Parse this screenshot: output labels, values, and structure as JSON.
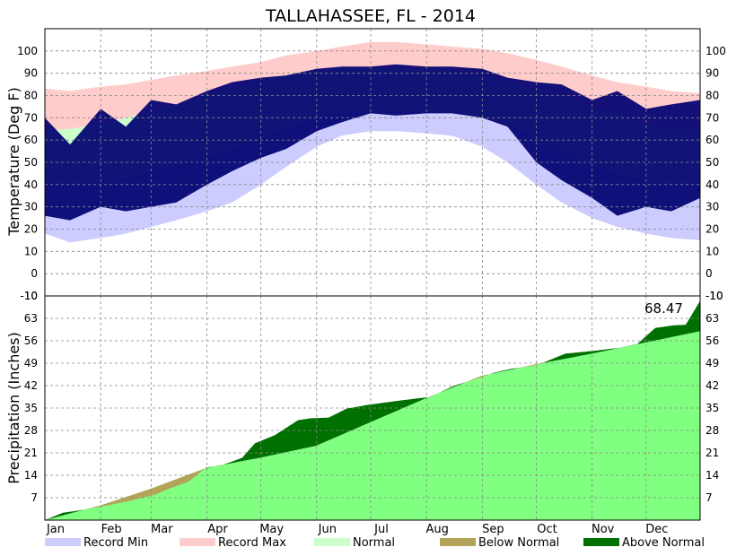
{
  "chart_data": {
    "type": "area",
    "title": "TALLAHASSEE, FL - 2014",
    "months": [
      "Jan",
      "Feb",
      "Mar",
      "Apr",
      "May",
      "Jun",
      "Jul",
      "Aug",
      "Sep",
      "Oct",
      "Nov",
      "Dec"
    ],
    "temperature": {
      "ylabel": "Temperature (Deg F)",
      "ylim": [
        -10,
        110
      ],
      "ticks": [
        -10,
        0,
        10,
        20,
        30,
        40,
        50,
        60,
        70,
        80,
        90,
        100
      ],
      "grid": true,
      "series_order": [
        "Record Min",
        "Record Max",
        "Normal",
        "Observed"
      ],
      "x_day": [
        1,
        15,
        32,
        46,
        60,
        74,
        91,
        105,
        121,
        135,
        152,
        166,
        182,
        196,
        213,
        227,
        244,
        258,
        274,
        288,
        305,
        319,
        335,
        349,
        365
      ],
      "record_max": [
        83,
        82,
        84,
        85,
        87,
        89,
        91,
        93,
        95,
        98,
        100,
        102,
        104,
        104,
        103,
        102,
        101,
        99,
        96,
        93,
        89,
        86,
        84,
        82,
        81
      ],
      "normal_max": [
        64,
        65,
        67,
        70,
        73,
        76,
        80,
        83,
        87,
        89,
        91,
        92,
        92,
        92,
        92,
        91,
        89,
        87,
        83,
        80,
        75,
        71,
        67,
        65,
        64
      ],
      "normal_min": [
        40,
        40,
        41,
        43,
        46,
        49,
        52,
        56,
        61,
        65,
        70,
        72,
        73,
        73,
        73,
        72,
        70,
        67,
        61,
        56,
        49,
        45,
        42,
        40,
        40
      ],
      "record_min": [
        18,
        14,
        16,
        18,
        21,
        24,
        28,
        32,
        40,
        48,
        57,
        62,
        64,
        64,
        63,
        62,
        57,
        50,
        40,
        32,
        25,
        21,
        18,
        16,
        15
      ],
      "observed_high": [
        70,
        58,
        74,
        66,
        78,
        76,
        82,
        86,
        88,
        89,
        92,
        93,
        93,
        94,
        93,
        93,
        92,
        88,
        86,
        85,
        78,
        82,
        74,
        76,
        78
      ],
      "observed_low": [
        26,
        24,
        30,
        28,
        30,
        32,
        40,
        46,
        52,
        56,
        64,
        68,
        72,
        71,
        72,
        72,
        70,
        66,
        50,
        42,
        34,
        26,
        30,
        28,
        34
      ]
    },
    "precipitation": {
      "ylabel": "Precipitation (Inches)",
      "ylim": [
        0,
        70
      ],
      "ticks": [
        7,
        14,
        21,
        28,
        35,
        42,
        49,
        56,
        63
      ],
      "grid": true,
      "normal_day": [
        0,
        31,
        59,
        90,
        120,
        151,
        181,
        212,
        243,
        273,
        304,
        334,
        365
      ],
      "normal_cumulative": [
        0,
        4.6,
        9.8,
        16.3,
        19.5,
        23.2,
        30.5,
        38.0,
        45.0,
        48.6,
        51.9,
        55.4,
        59.0
      ],
      "observed_day": [
        0,
        10,
        20,
        35,
        48,
        62,
        70,
        80,
        90,
        98,
        110,
        117,
        128,
        141,
        148,
        158,
        168,
        180,
        200,
        215,
        228,
        240,
        250,
        260,
        270,
        275,
        290,
        305,
        320,
        330,
        340,
        350,
        357,
        365
      ],
      "observed_cumulative": [
        0,
        2.3,
        3.1,
        4.6,
        6.1,
        8.1,
        10.0,
        12.0,
        16.5,
        17.0,
        19.5,
        24.0,
        26.5,
        31.2,
        31.8,
        32.0,
        34.8,
        36.0,
        37.5,
        38.5,
        42.0,
        44.0,
        46.0,
        47.3,
        48.0,
        48.6,
        52.0,
        52.8,
        53.8,
        55.0,
        60.0,
        60.8,
        61.0,
        68.47
      ],
      "total_label": "68.47"
    },
    "legend": {
      "placement": "bottom",
      "items": [
        {
          "label": "Record Min",
          "color": "#ccccff"
        },
        {
          "label": "Record Max",
          "color": "#ffcccc"
        },
        {
          "label": "Normal",
          "color": "#ccffcc"
        },
        {
          "label": "Below Normal",
          "color": "#b3a45a"
        },
        {
          "label": "Above Normal",
          "color": "#007000"
        }
      ]
    },
    "colors": {
      "observed_temp": "#000070",
      "normal_precip": "#80ff80"
    }
  }
}
